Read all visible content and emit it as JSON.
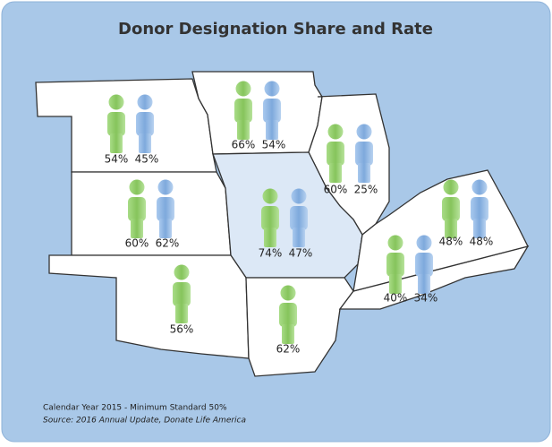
{
  "title": "Donor Designation Share and Rate",
  "regions": [
    {
      "share": "54%",
      "rate": "45%"
    },
    {
      "share": "66%",
      "rate": "54%"
    },
    {
      "share": "60%",
      "rate": "25%"
    },
    {
      "share": "60%",
      "rate": "62%"
    },
    {
      "share": "74%",
      "rate": "47%"
    },
    {
      "share": "48%",
      "rate": "48%"
    },
    {
      "share": "40%",
      "rate": "34%"
    },
    {
      "share": "56%"
    },
    {
      "share": "62%"
    }
  ],
  "footer": {
    "note": "Calendar Year 2015 - Minimum Standard 50%",
    "source": "Source:  2016 Annual Update, Donate Life America"
  }
}
